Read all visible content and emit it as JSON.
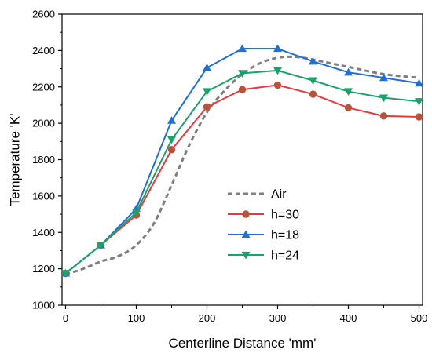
{
  "chart_data": {
    "type": "line",
    "xlabel": "Centerline Distance 'mm'",
    "ylabel": "Temperature 'K'",
    "xlim": [
      -5,
      505
    ],
    "ylim": [
      1000,
      2600
    ],
    "xticks": [
      0,
      100,
      200,
      300,
      400,
      500
    ],
    "yticks": [
      1000,
      1200,
      1400,
      1600,
      1800,
      2000,
      2200,
      2400,
      2600
    ],
    "legend_position": "center-right",
    "series": [
      {
        "name": "Air",
        "style": "dashed",
        "marker": "none",
        "color": "#7f7f7f",
        "x": [
          0,
          25,
          50,
          75,
          100,
          125,
          150,
          175,
          200,
          225,
          250,
          275,
          300,
          325,
          350,
          375,
          400,
          450,
          500
        ],
        "y": [
          1170,
          1200,
          1240,
          1270,
          1330,
          1450,
          1660,
          1880,
          2060,
          2180,
          2270,
          2330,
          2360,
          2365,
          2350,
          2330,
          2310,
          2270,
          2250
        ]
      },
      {
        "name": "h=30",
        "style": "solid",
        "marker": "circle",
        "color": "#e8383b",
        "x": [
          0,
          50,
          100,
          150,
          200,
          250,
          300,
          350,
          400,
          450,
          500
        ],
        "y": [
          1175,
          1330,
          1495,
          1855,
          2090,
          2185,
          2210,
          2160,
          2085,
          2040,
          2035
        ]
      },
      {
        "name": "h=18",
        "style": "solid",
        "marker": "triangle-up",
        "color": "#1f6fd6",
        "x": [
          0,
          50,
          100,
          150,
          200,
          250,
          300,
          350,
          400,
          450,
          500
        ],
        "y": [
          1175,
          1330,
          1530,
          2015,
          2305,
          2410,
          2410,
          2340,
          2280,
          2250,
          2220
        ]
      },
      {
        "name": "h=24",
        "style": "solid",
        "marker": "triangle-down",
        "color": "#19a36b",
        "x": [
          0,
          50,
          100,
          150,
          200,
          250,
          300,
          350,
          400,
          450,
          500
        ],
        "y": [
          1175,
          1330,
          1510,
          1910,
          2175,
          2275,
          2290,
          2235,
          2175,
          2140,
          2120
        ]
      }
    ]
  }
}
